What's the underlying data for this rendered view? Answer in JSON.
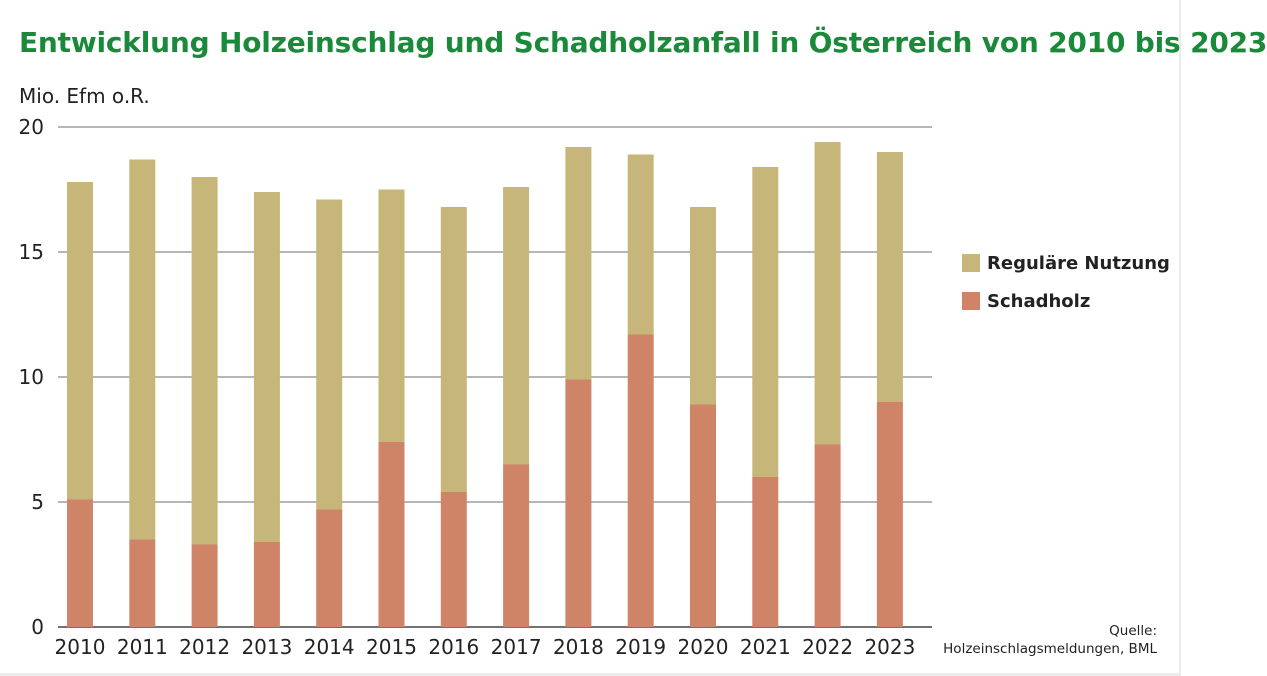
{
  "title": "Entwicklung Holzeinschlag und Schadholzanfall in Österreich von 2010 bis 2023",
  "source": {
    "label": "Quelle:",
    "text": "Holzeinschlagsmeldungen, BML"
  },
  "chart_data": {
    "type": "bar",
    "stacked": true,
    "title": "Entwicklung Holzeinschlag und Schadholzanfall in Österreich von 2010 bis 2023",
    "ylabel": "Mio. Efm o.R.",
    "xlabel": "",
    "ylim": [
      0,
      20
    ],
    "yticks": [
      "0",
      "5",
      "10",
      "15",
      "20"
    ],
    "grid": true,
    "legend_position": "right",
    "categories": [
      "2010",
      "2011",
      "2012",
      "2013",
      "2014",
      "2015",
      "2016",
      "2017",
      "2018",
      "2019",
      "2020",
      "2021",
      "2022",
      "2023"
    ],
    "series": [
      {
        "name": "Schadholz",
        "color": "#cf8468",
        "values": [
          5.1,
          3.5,
          3.3,
          3.4,
          4.7,
          7.4,
          5.4,
          6.5,
          9.9,
          11.7,
          8.9,
          6.0,
          7.3,
          9.0
        ]
      },
      {
        "name": "Reguläre Nutzung",
        "color": "#c7b679",
        "values": [
          12.7,
          15.2,
          14.7,
          14.0,
          12.4,
          10.1,
          11.4,
          11.1,
          9.3,
          7.2,
          7.9,
          12.4,
          12.1,
          10.0
        ]
      }
    ],
    "legend_order": [
      "Reguläre Nutzung",
      "Schadholz"
    ]
  }
}
